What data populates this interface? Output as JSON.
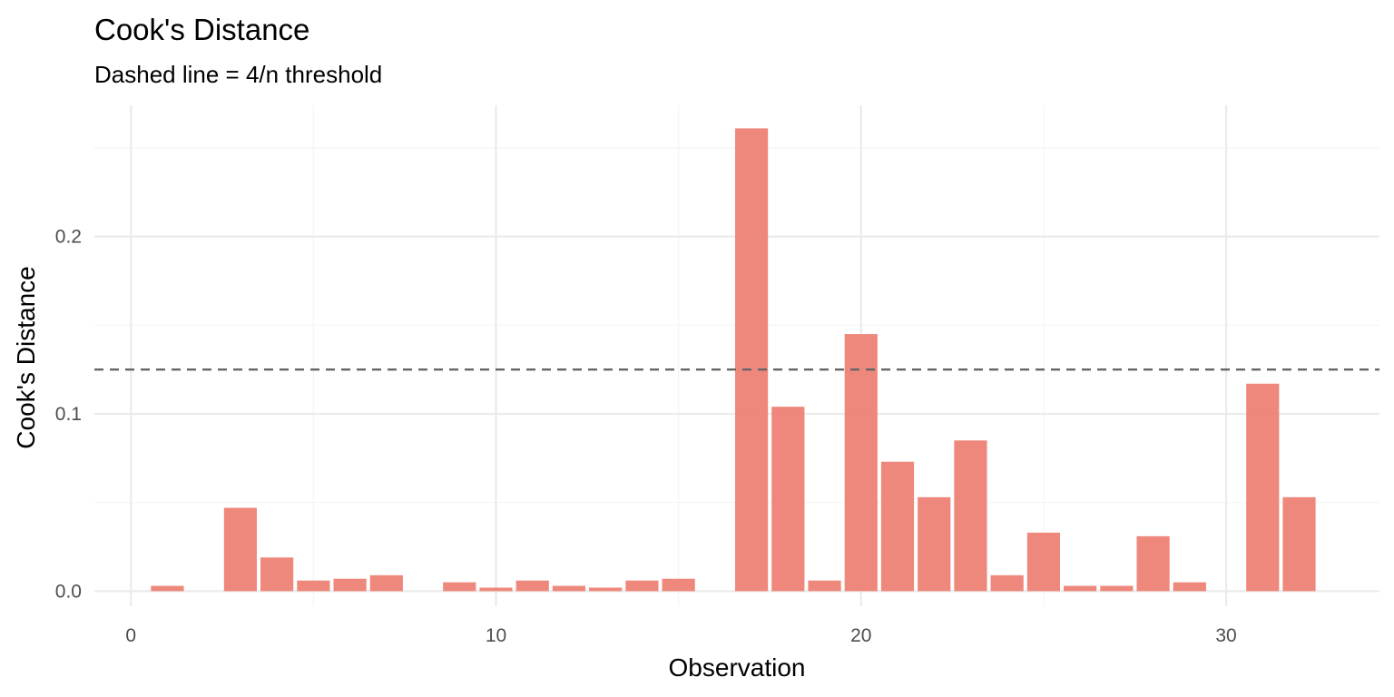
{
  "chart_data": {
    "type": "bar",
    "title": "Cook's Distance",
    "subtitle": "Dashed line = 4/n threshold",
    "xlabel": "Observation",
    "ylabel": "Cook's Distance",
    "x": [
      1,
      2,
      3,
      4,
      5,
      6,
      7,
      8,
      9,
      10,
      11,
      12,
      13,
      14,
      15,
      16,
      17,
      18,
      19,
      20,
      21,
      22,
      23,
      24,
      25,
      26,
      27,
      28,
      29,
      30,
      31,
      32
    ],
    "values": [
      0.003,
      0.0,
      0.047,
      0.019,
      0.006,
      0.007,
      0.009,
      0.0,
      0.005,
      0.002,
      0.006,
      0.003,
      0.002,
      0.006,
      0.007,
      0.0,
      0.261,
      0.104,
      0.006,
      0.145,
      0.073,
      0.053,
      0.085,
      0.009,
      0.033,
      0.003,
      0.003,
      0.031,
      0.005,
      0.0,
      0.117,
      0.053
    ],
    "threshold": 0.125,
    "xlim": [
      -1,
      34.2
    ],
    "ylim": [
      -0.0085,
      0.274
    ],
    "x_ticks": [
      0,
      10,
      20,
      30
    ],
    "y_ticks": [
      0.0,
      0.1,
      0.2
    ],
    "x_tick_labels": [
      "0",
      "10",
      "20",
      "30"
    ],
    "y_tick_labels": [
      "0.0",
      "0.1",
      "0.2"
    ],
    "grid": true,
    "colors": {
      "bar": "#ee8275",
      "threshold_line": "#666666",
      "grid_major": "#ebebeb",
      "grid_minor": "#f4f4f4",
      "tick_text": "#4d4d4d",
      "text": "#000000"
    }
  }
}
